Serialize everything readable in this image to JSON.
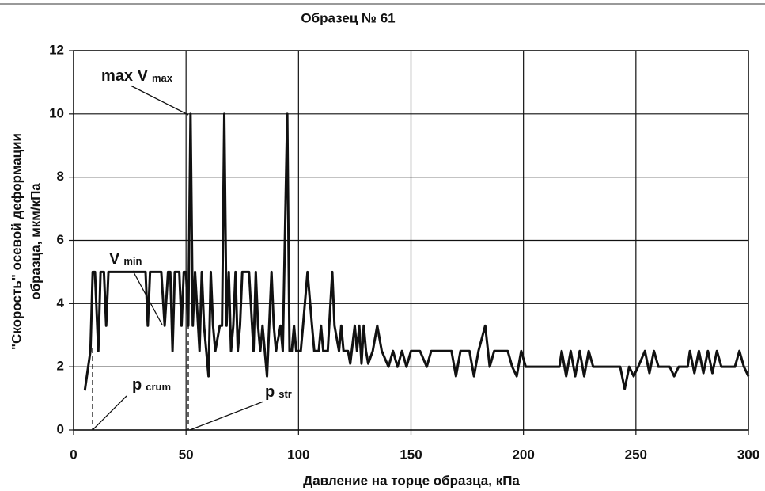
{
  "chart_data": {
    "type": "line",
    "title": "Образец № 61",
    "xlabel": "Давление на торце образца, кПа",
    "ylabel": [
      "\"Скорость\" осевой деформации",
      "образца, мкм/кПа"
    ],
    "annotations": [
      {
        "text": "max V",
        "sub": "max"
      },
      {
        "text": "V",
        "sub": "min"
      },
      {
        "text": "p",
        "sub": "crum"
      },
      {
        "text": "p",
        "sub": "str"
      }
    ],
    "xlim": [
      0,
      300
    ],
    "xticks": [
      0,
      50,
      100,
      150,
      200,
      250,
      300
    ],
    "ylim": [
      0,
      12
    ],
    "yticks": [
      0,
      2,
      4,
      6,
      8,
      10,
      12
    ],
    "grid": true,
    "x": [
      5,
      7.5,
      8.5,
      9.5,
      11,
      12,
      13.5,
      14.5,
      15.5,
      32,
      33,
      34,
      39,
      40.5,
      42,
      43,
      44,
      45,
      47,
      48,
      49,
      50,
      51,
      52,
      53,
      54,
      56,
      57,
      58,
      59,
      60,
      61,
      62,
      63,
      65,
      66,
      67,
      68,
      69,
      70,
      71,
      72,
      73,
      74,
      75,
      78,
      80,
      81,
      82,
      83,
      84,
      86,
      88,
      89,
      90,
      92,
      93,
      95,
      96,
      97,
      98,
      99,
      101,
      102,
      104,
      106,
      107,
      109,
      110,
      111,
      113,
      115,
      116,
      118,
      119,
      120,
      122,
      123,
      125,
      126,
      127,
      128,
      129,
      130,
      131,
      133,
      135,
      137,
      140,
      142,
      144,
      146,
      148,
      150,
      152,
      154,
      157,
      159,
      168,
      170,
      172,
      176,
      178,
      180,
      183,
      185,
      187,
      193,
      195,
      197,
      199,
      201,
      207,
      216,
      217,
      219,
      221,
      223,
      225,
      227,
      229,
      231,
      240,
      243,
      245,
      247,
      249,
      251,
      254,
      256,
      258,
      260,
      265,
      267,
      269,
      273,
      274,
      276,
      278,
      280,
      282,
      284,
      286,
      288,
      294,
      296,
      298,
      300
    ],
    "series": [
      {
        "color": "#111111",
        "values": [
          1.25,
          2.5,
          5,
          5,
          2.5,
          5,
          5,
          3.3,
          5,
          5,
          3.3,
          5,
          5,
          3.3,
          5,
          5,
          2.5,
          5,
          5,
          3.3,
          5,
          5,
          3.3,
          10,
          3.3,
          5,
          2.5,
          5,
          3.3,
          2.5,
          1.7,
          5,
          3.3,
          2.5,
          3.3,
          3.3,
          10,
          3.3,
          5,
          2.5,
          3.3,
          5,
          2.5,
          3.3,
          5,
          5,
          2.5,
          5,
          3.3,
          2.5,
          3.3,
          1.7,
          5,
          3.3,
          2.5,
          3.3,
          2.5,
          10,
          2.5,
          2.5,
          3.3,
          2.5,
          2.5,
          3.3,
          5,
          3.3,
          2.5,
          2.5,
          3.3,
          2.5,
          2.5,
          5,
          3.3,
          2.5,
          3.3,
          2.5,
          2.5,
          2.1,
          3.3,
          2.5,
          3.3,
          2.1,
          3.3,
          2.5,
          2.1,
          2.5,
          3.3,
          2.5,
          2,
          2.5,
          2,
          2.5,
          2,
          2.5,
          2.5,
          2.5,
          2,
          2.5,
          2.5,
          1.7,
          2.5,
          2.5,
          1.7,
          2.5,
          3.3,
          2,
          2.5,
          2.5,
          2,
          1.7,
          2.5,
          2,
          2,
          2,
          2.5,
          1.7,
          2.5,
          1.7,
          2.5,
          1.7,
          2.5,
          2,
          2,
          2,
          1.3,
          2,
          1.7,
          2,
          2.5,
          1.8,
          2.5,
          2,
          2,
          1.7,
          2,
          2,
          2.5,
          1.8,
          2.5,
          1.8,
          2.5,
          1.8,
          2.5,
          2,
          2,
          2.5,
          2,
          1.7
        ]
      }
    ]
  }
}
